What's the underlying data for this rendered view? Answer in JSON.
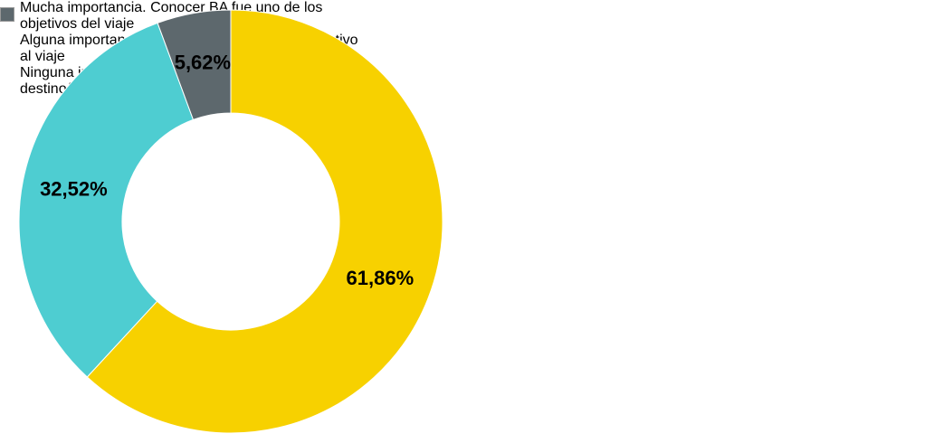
{
  "chart_data": {
    "type": "donut",
    "categories": [
      "Mucha importancia. Conocer BA fue uno de los objetivos del viaje",
      "Alguna importancia. La parada en BA sumó atractivo al viaje",
      "Ninguna importancia. El viaje se eligió por otro/s destino/s"
    ],
    "values": [
      61.86,
      32.52,
      5.62
    ],
    "value_labels": [
      "61,86%",
      "32,52%",
      "5,62%"
    ],
    "colors": [
      "#f7d100",
      "#4ecdd1",
      "#5d686d"
    ],
    "legend": "right"
  }
}
